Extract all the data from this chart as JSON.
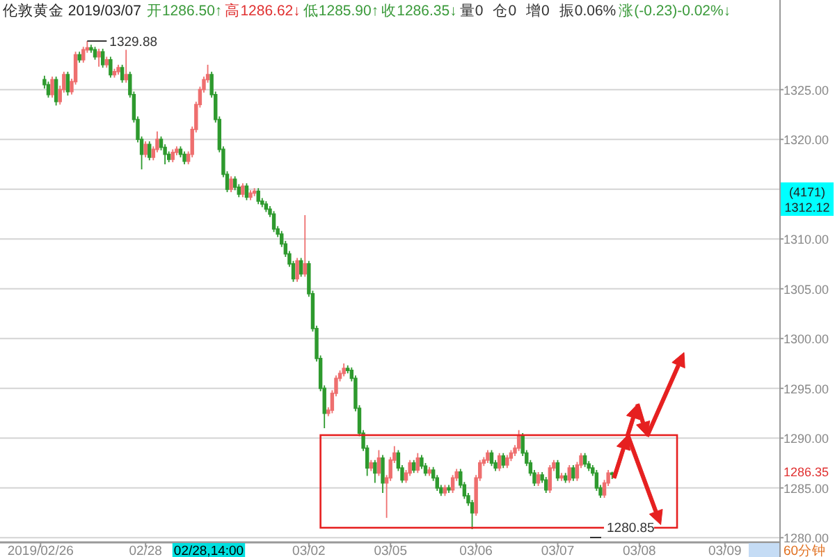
{
  "chart_data": {
    "type": "candlestick",
    "title": "伦敦黄金 2019/03/07",
    "annotations": [
      "开1286.50↑",
      "高1286.62↓",
      "低1285.90↑",
      "收1286.35↓",
      "量0",
      "仓0",
      "增0",
      "振0.06%",
      "涨(-0.23)-0.02%↓",
      "1329.88",
      "1280.85",
      "(4171)",
      "1312.12",
      "1286.35",
      "02/28,14:00",
      "60分钟"
    ],
    "categories": [
      "2019/02/26",
      null,
      null,
      null,
      null,
      null,
      null,
      null,
      null,
      null,
      null,
      null,
      null,
      null,
      null,
      null,
      null,
      null,
      null,
      null,
      null,
      null,
      null,
      null,
      null,
      null,
      null,
      "02/28",
      null,
      null,
      null,
      null,
      null,
      null,
      null,
      null,
      null,
      null,
      null,
      null,
      null,
      null,
      null,
      null,
      null,
      null,
      null,
      null,
      null,
      null,
      null,
      null,
      null,
      null,
      null,
      null,
      null,
      null,
      null,
      null,
      null,
      null,
      null,
      null,
      null,
      null,
      null,
      null,
      null,
      "03/02",
      null,
      null,
      null,
      null,
      null,
      null,
      null,
      null,
      null,
      null,
      null,
      null,
      null,
      null,
      null,
      null,
      null,
      null,
      null,
      null,
      "03/05",
      null,
      null,
      null,
      null,
      null,
      null,
      null,
      null,
      null,
      null,
      null,
      null,
      null,
      null,
      null,
      null,
      null,
      null,
      null,
      null,
      null,
      "03/06",
      null,
      null,
      null,
      null,
      null,
      null,
      null,
      null,
      null,
      null,
      null,
      null,
      null,
      null,
      null,
      null,
      null,
      null,
      null,
      null,
      "03/07",
      null,
      null,
      null,
      null,
      null,
      null,
      null,
      null,
      null,
      null,
      null,
      null,
      null,
      null,
      null,
      null,
      null,
      null,
      null,
      null,
      "03/08",
      null,
      null,
      null,
      null,
      null,
      null,
      null,
      null,
      null,
      null,
      null,
      null,
      null,
      null,
      null,
      null,
      null,
      null,
      null,
      null,
      null,
      "03/09",
      null,
      null,
      null,
      null,
      null,
      null,
      null,
      null,
      null
    ],
    "ohlc": [
      null,
      [
        1326,
        1326.4,
        1325.1,
        1325.5
      ],
      [
        1325.5,
        1325.8,
        1324.2,
        1324.5
      ],
      [
        1324.5,
        1326.3,
        1324.2,
        1326
      ],
      [
        1326,
        1326.3,
        1323.4,
        1323.8
      ],
      [
        1323.8,
        1325.4,
        1323.5,
        1325
      ],
      [
        1325,
        1326.8,
        1324.7,
        1326.5
      ],
      [
        1326.5,
        1326.8,
        1324.4,
        1324.8
      ],
      [
        1324.8,
        1326.1,
        1324.5,
        1325.8
      ],
      [
        1325.8,
        1328.8,
        1325.5,
        1328.5
      ],
      [
        1328.5,
        1328.8,
        1327.7,
        1328
      ],
      [
        1328,
        1329.3,
        1327.7,
        1329
      ],
      [
        1329,
        1329.88,
        1328.7,
        1329.2
      ],
      [
        1329.2,
        1329.5,
        1328.7,
        1329
      ],
      [
        1329,
        1329.3,
        1328,
        1328.3
      ],
      [
        1328.3,
        1329.1,
        1327.3,
        1328.8
      ],
      [
        1328.8,
        1329.1,
        1327.2,
        1327.5
      ],
      [
        1327.5,
        1328.3,
        1327.2,
        1328
      ],
      [
        1328,
        1328.3,
        1326.2,
        1326.5
      ],
      [
        1326.5,
        1327.1,
        1326.2,
        1326.8
      ],
      [
        1326.8,
        1327.5,
        1326.5,
        1327.2
      ],
      [
        1327.2,
        1327.5,
        1325.7,
        1326
      ],
      [
        1326,
        1329,
        1325.7,
        1326.5
      ],
      [
        1326.5,
        1326.8,
        1324.2,
        1324.5
      ],
      [
        1324.5,
        1324.8,
        1321.7,
        1322
      ],
      [
        1322,
        1322.3,
        1319.7,
        1320
      ],
      [
        1320,
        1320.3,
        1317,
        1318.5
      ],
      [
        1318.5,
        1319.8,
        1318.2,
        1319.5
      ],
      [
        1319.5,
        1319.8,
        1317.9,
        1318.2
      ],
      [
        1318.2,
        1319.3,
        1317.9,
        1319
      ],
      [
        1319,
        1320.8,
        1318.7,
        1320
      ],
      [
        1320,
        1320.3,
        1318.9,
        1319.2
      ],
      [
        1319.2,
        1319.5,
        1317.5,
        1318.5
      ],
      [
        1318.5,
        1318.8,
        1317.7,
        1318
      ],
      [
        1318,
        1319,
        1317.7,
        1318.7
      ],
      [
        1318.7,
        1319.3,
        1318.4,
        1319
      ],
      [
        1319,
        1319.3,
        1318.2,
        1318.5
      ],
      [
        1318.5,
        1318.8,
        1317.5,
        1317.8
      ],
      [
        1317.8,
        1318.8,
        1317.5,
        1318.5
      ],
      [
        1318.5,
        1321.3,
        1318.2,
        1321
      ],
      [
        1321,
        1323.8,
        1320.7,
        1323.5
      ],
      [
        1323.5,
        1325.3,
        1323.2,
        1325
      ],
      [
        1325,
        1326.3,
        1324.7,
        1326
      ],
      [
        1326,
        1327.5,
        1325.7,
        1326.5
      ],
      [
        1326.5,
        1326.8,
        1324.2,
        1324.5
      ],
      [
        1324.5,
        1324.8,
        1321.7,
        1322
      ],
      [
        1322,
        1322.3,
        1318.7,
        1319
      ],
      [
        1319,
        1319.3,
        1316.2,
        1316.5
      ],
      [
        1316.5,
        1316.8,
        1314.7,
        1315
      ],
      [
        1315,
        1316.3,
        1314.7,
        1316
      ],
      [
        1316,
        1316.3,
        1314.9,
        1315.2
      ],
      [
        1315.2,
        1315.5,
        1314.2,
        1314.5
      ],
      [
        1314.5,
        1315.6,
        1314.2,
        1315.3
      ],
      [
        1315.3,
        1315.6,
        1313.9,
        1314.2
      ],
      [
        1314.2,
        1314.9,
        1313.9,
        1314.6
      ],
      [
        1314.6,
        1315.1,
        1314.3,
        1314.8
      ],
      [
        1314.8,
        1315.1,
        1313.5,
        1313.8
      ],
      [
        1313.8,
        1314.1,
        1313.2,
        1313.5
      ],
      [
        1313.5,
        1313.8,
        1312.7,
        1313
      ],
      [
        1313,
        1313.3,
        1312.2,
        1312.5
      ],
      [
        1312.5,
        1312.8,
        1310.7,
        1311
      ],
      [
        1311,
        1311.3,
        1310.2,
        1310.5
      ],
      [
        1310.5,
        1310.8,
        1309.2,
        1309.5
      ],
      [
        1309.5,
        1309.8,
        1308.2,
        1308.5
      ],
      [
        1308.5,
        1308.8,
        1307.2,
        1307.5
      ],
      [
        1307.5,
        1307.8,
        1305.7,
        1306
      ],
      [
        1306,
        1308.1,
        1305.7,
        1307.8
      ],
      [
        1307.8,
        1308.1,
        1306.2,
        1306.5
      ],
      [
        1306.5,
        1312.4,
        1306.2,
        1307.5
      ],
      [
        1307.5,
        1307.8,
        1304.2,
        1304.5
      ],
      [
        1304.5,
        1304.8,
        1300.7,
        1301
      ],
      [
        1301,
        1301.3,
        1297.7,
        1298
      ],
      [
        1298,
        1298.3,
        1294.7,
        1295
      ],
      [
        1295,
        1295.3,
        1291,
        1292.5
      ],
      [
        1292.5,
        1293.1,
        1292.2,
        1292.8
      ],
      [
        1292.8,
        1294.8,
        1292.5,
        1294.5
      ],
      [
        1294.5,
        1296.3,
        1294.2,
        1296
      ],
      [
        1296,
        1296.8,
        1295.7,
        1296.5
      ],
      [
        1296.5,
        1297.5,
        1296.2,
        1297
      ],
      [
        1297,
        1297.3,
        1296.5,
        1296.8
      ],
      [
        1296.8,
        1297.1,
        1295.7,
        1296
      ],
      [
        1296,
        1296.3,
        1292.7,
        1293
      ],
      [
        1293,
        1293.3,
        1290.2,
        1290.5
      ],
      [
        1290.5,
        1290.8,
        1288.7,
        1289
      ],
      [
        1289,
        1289.3,
        1286.2,
        1287
      ],
      [
        1287,
        1287.8,
        1286.7,
        1287.5
      ],
      [
        1287.5,
        1287.8,
        1285.5,
        1286.5
      ],
      [
        1286.5,
        1288.8,
        1286.2,
        1288
      ],
      [
        1288,
        1288.3,
        1284.5,
        1285.5
      ],
      [
        1285.5,
        1286.3,
        1282,
        1286
      ],
      [
        1286,
        1288.1,
        1285.7,
        1287.8
      ],
      [
        1287.8,
        1289.2,
        1287.5,
        1288.5
      ],
      [
        1288.5,
        1288.8,
        1286.7,
        1287
      ],
      [
        1287,
        1287.3,
        1285.5,
        1285.8
      ],
      [
        1285.8,
        1286.8,
        1285.5,
        1286.5
      ],
      [
        1286.5,
        1287.8,
        1286.2,
        1287.5
      ],
      [
        1287.5,
        1287.8,
        1286.5,
        1286.8
      ],
      [
        1286.8,
        1288.5,
        1286.5,
        1288
      ],
      [
        1288,
        1288.3,
        1286.9,
        1287.2
      ],
      [
        1287.2,
        1287.5,
        1286.2,
        1286.5
      ],
      [
        1286.5,
        1287.1,
        1286.2,
        1286.8
      ],
      [
        1286.8,
        1287.1,
        1285.7,
        1286
      ],
      [
        1286,
        1286.3,
        1284.7,
        1285
      ],
      [
        1285,
        1285.3,
        1284.2,
        1284.5
      ],
      [
        1284.5,
        1285.3,
        1284.2,
        1285
      ],
      [
        1285,
        1285.3,
        1284.5,
        1284.8
      ],
      [
        1284.8,
        1286.3,
        1284.5,
        1286
      ],
      [
        1286,
        1286.9,
        1285.7,
        1286.6
      ],
      [
        1286.6,
        1286.9,
        1285,
        1285.3
      ],
      [
        1285.3,
        1285.6,
        1283.9,
        1284.2
      ],
      [
        1284.2,
        1284.5,
        1283.2,
        1283.5
      ],
      [
        1283.5,
        1283.8,
        1280.85,
        1282.5
      ],
      [
        1282.5,
        1286.3,
        1282.2,
        1286
      ],
      [
        1286,
        1287.8,
        1285.7,
        1287.5
      ],
      [
        1287.5,
        1288.1,
        1287.2,
        1287.8
      ],
      [
        1287.8,
        1288.8,
        1287.5,
        1288.5
      ],
      [
        1288.5,
        1288.8,
        1287.2,
        1287.5
      ],
      [
        1287.5,
        1287.8,
        1286.7,
        1287
      ],
      [
        1287,
        1288.5,
        1286.7,
        1288.2
      ],
      [
        1288.2,
        1288.5,
        1287,
        1287.3
      ],
      [
        1287.3,
        1288.3,
        1287,
        1288
      ],
      [
        1288,
        1288.8,
        1287.7,
        1288.5
      ],
      [
        1288.5,
        1289.3,
        1288.2,
        1289
      ],
      [
        1289,
        1290.8,
        1288.7,
        1290.2
      ],
      [
        1290.2,
        1290.5,
        1288.2,
        1288.5
      ],
      [
        1288.5,
        1288.8,
        1287.2,
        1287.5
      ],
      [
        1287.5,
        1287.8,
        1286.2,
        1286.5
      ],
      [
        1286.5,
        1286.8,
        1285.2,
        1285.5
      ],
      [
        1285.5,
        1286.6,
        1285.2,
        1286.3
      ],
      [
        1286.3,
        1286.6,
        1285.5,
        1285.8
      ],
      [
        1285.8,
        1286.1,
        1284.5,
        1284.8
      ],
      [
        1284.8,
        1287.3,
        1284.5,
        1287
      ],
      [
        1287,
        1287.8,
        1286.7,
        1287.5
      ],
      [
        1287.5,
        1287.8,
        1285.7,
        1286
      ],
      [
        1286,
        1286.5,
        1285.7,
        1286.2
      ],
      [
        1286.2,
        1286.5,
        1285.5,
        1285.8
      ],
      [
        1285.8,
        1287.3,
        1285.5,
        1287
      ],
      [
        1287,
        1287.3,
        1285.7,
        1286
      ],
      [
        1286,
        1287.6,
        1285.7,
        1287.3
      ],
      [
        1287.3,
        1288.5,
        1287,
        1288.2
      ],
      [
        1288.2,
        1288.5,
        1287.1,
        1287.4
      ],
      [
        1287.4,
        1287.7,
        1286.7,
        1287
      ],
      [
        1287,
        1287.3,
        1286.2,
        1286.5
      ],
      [
        1286.5,
        1286.8,
        1284.7,
        1285
      ],
      [
        1285,
        1285.3,
        1284,
        1284.3
      ],
      [
        1284.3,
        1285.8,
        1284,
        1285.5
      ],
      [
        1285.5,
        1286.8,
        1285.2,
        1286.5
      ],
      [
        1286.5,
        1286.62,
        1285.9,
        1286.35
      ],
      null,
      null,
      null,
      null,
      null,
      null,
      null,
      null,
      null,
      null,
      null,
      null,
      null,
      null,
      null,
      null,
      null,
      null,
      null,
      null,
      null,
      null,
      null,
      null,
      null,
      null,
      null,
      null,
      null,
      null,
      null,
      null,
      null,
      null,
      null,
      null,
      null,
      null
    ],
    "ylim": [
      1279.6,
      1334
    ],
    "yticks": [
      {
        "value": 1280,
        "label": "1280.00"
      },
      {
        "value": 1285,
        "label": "1285.00"
      },
      {
        "value": 1290,
        "label": "1290.00"
      },
      {
        "value": 1295,
        "label": "1295.00"
      },
      {
        "value": 1300,
        "label": "1300.00"
      },
      {
        "value": 1305,
        "label": "1305.00"
      },
      {
        "value": 1310,
        "label": "1310.00"
      },
      {
        "value": 1315,
        "label": null
      },
      {
        "value": 1320,
        "label": "1320.00"
      },
      {
        "value": 1325,
        "label": "1325.00"
      }
    ],
    "grid": "y"
  }
}
